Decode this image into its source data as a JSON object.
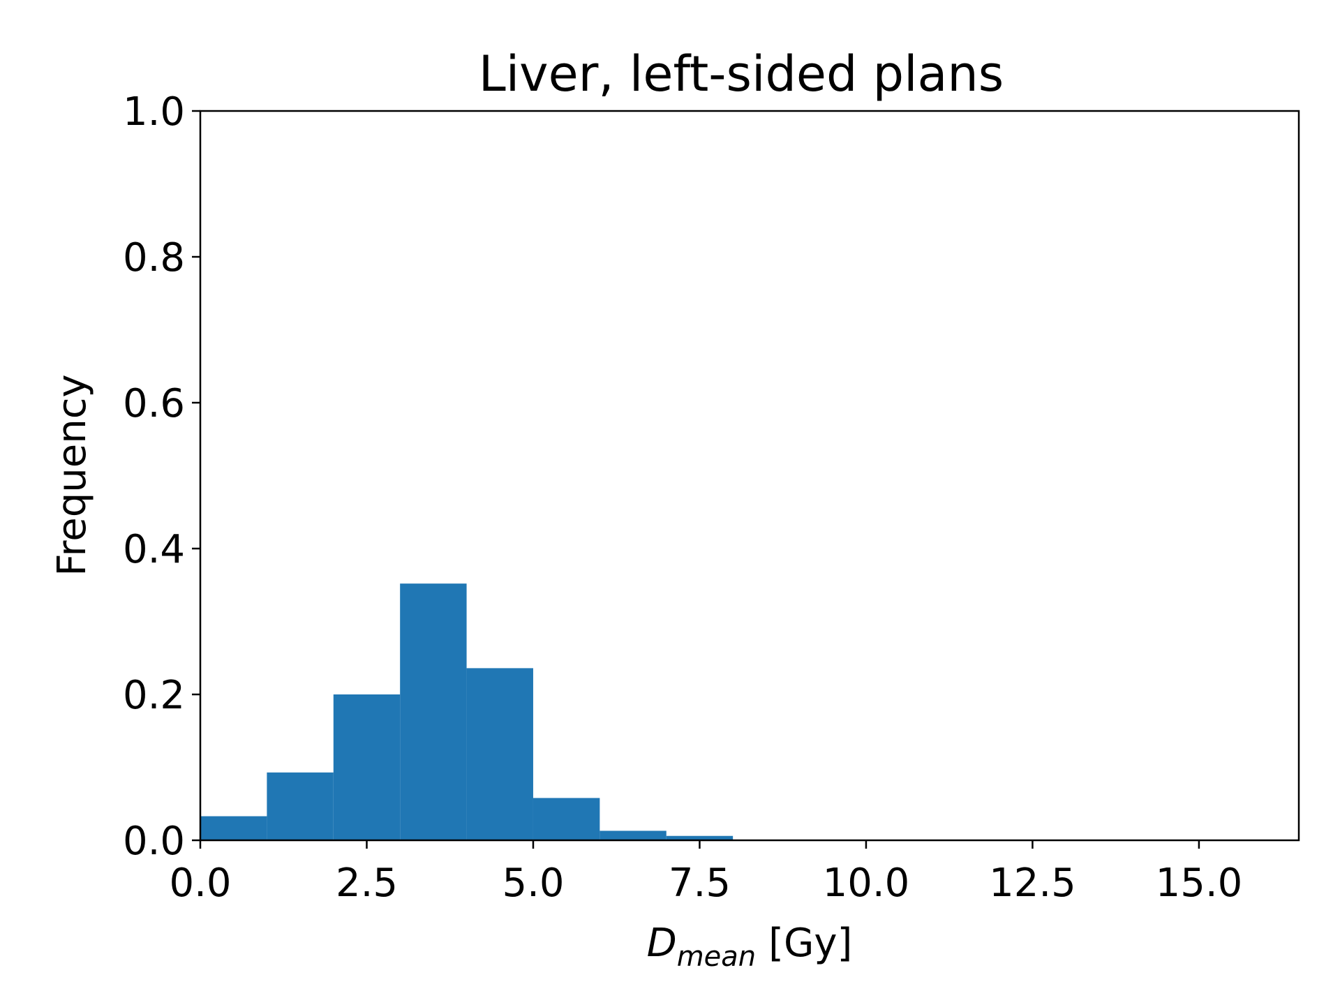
{
  "chart_data": {
    "type": "bar",
    "title": "Liver, left-sided plans",
    "xlabel": {
      "main": "D",
      "subscript": "mean",
      "unit": "[Gy]"
    },
    "ylabel": "Frequency",
    "xlim": [
      0.0,
      16.5
    ],
    "ylim": [
      0.0,
      1.0
    ],
    "grid": false,
    "bar_color": "#2077b4",
    "x_ticks": [
      "0.0",
      "2.5",
      "5.0",
      "7.5",
      "10.0",
      "12.5",
      "15.0"
    ],
    "y_ticks": [
      "0.0",
      "0.2",
      "0.4",
      "0.6",
      "0.8",
      "1.0"
    ],
    "bins": [
      {
        "x0": 0,
        "x1": 1,
        "value": 0.033
      },
      {
        "x0": 1,
        "x1": 2,
        "value": 0.093
      },
      {
        "x0": 2,
        "x1": 3,
        "value": 0.2
      },
      {
        "x0": 3,
        "x1": 4,
        "value": 0.352
      },
      {
        "x0": 4,
        "x1": 5,
        "value": 0.236
      },
      {
        "x0": 5,
        "x1": 6,
        "value": 0.058
      },
      {
        "x0": 6,
        "x1": 7,
        "value": 0.013
      },
      {
        "x0": 7,
        "x1": 8,
        "value": 0.006
      }
    ]
  }
}
